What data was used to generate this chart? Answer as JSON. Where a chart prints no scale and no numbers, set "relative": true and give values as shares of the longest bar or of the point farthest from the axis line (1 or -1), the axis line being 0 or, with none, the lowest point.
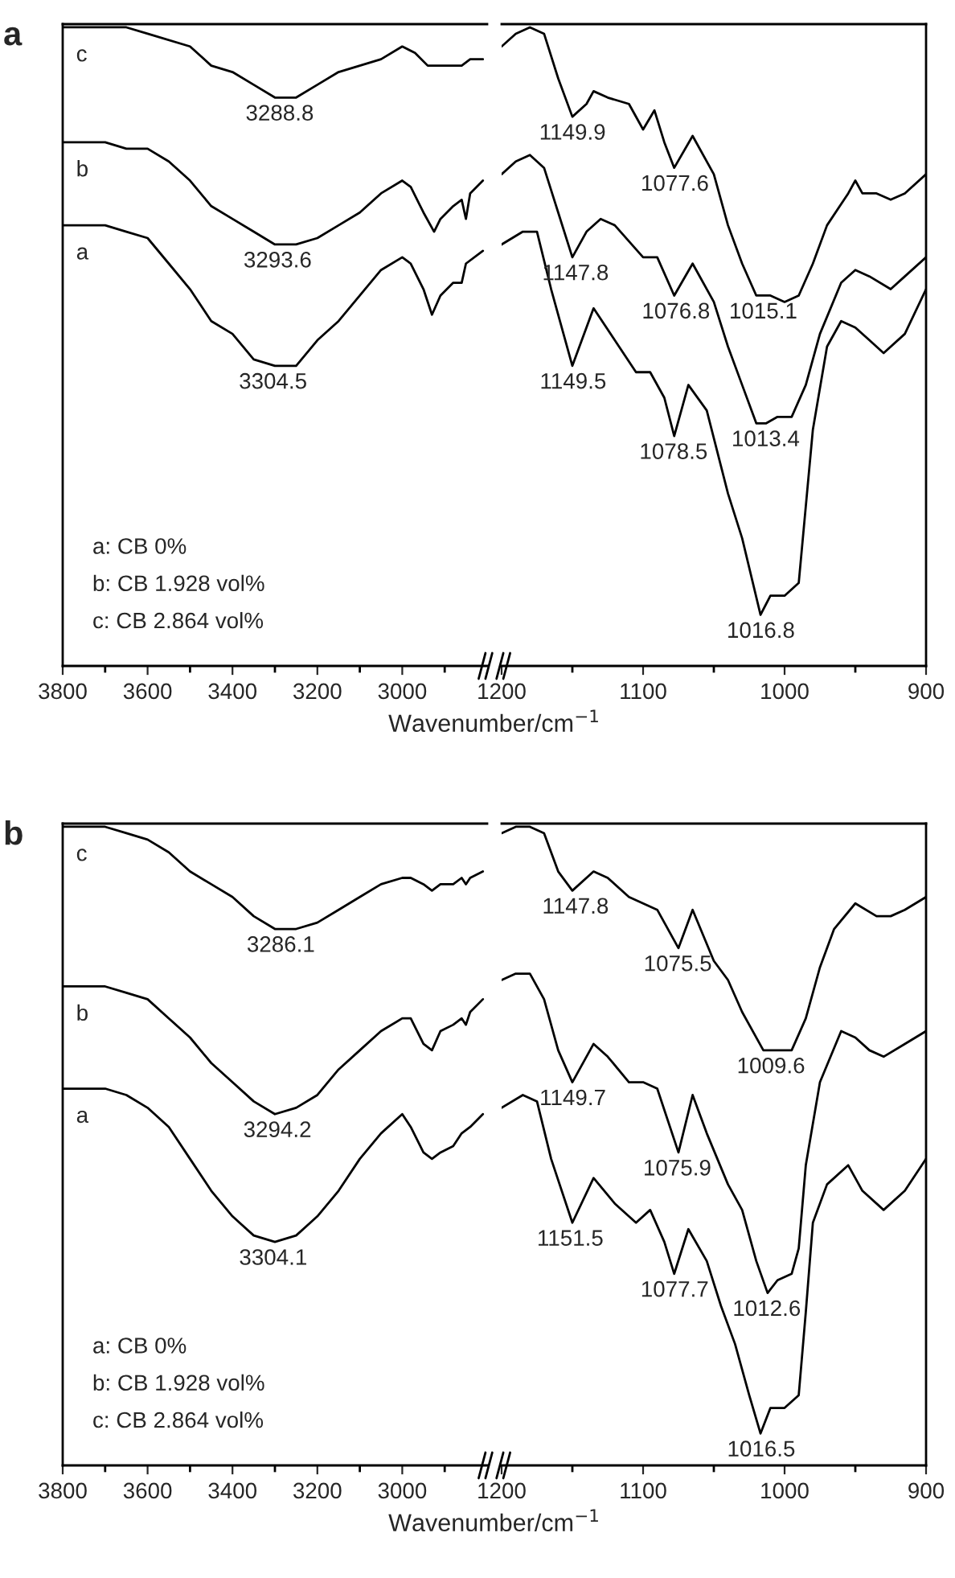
{
  "chart_data": [
    {
      "type": "line",
      "title": "a",
      "relative": true,
      "xlim": [
        3800,
        2800
      ],
      "xticks": [
        3800,
        {
          "value": 3700,
          "label": null
        },
        3600,
        {
          "value": 3500,
          "label": null
        },
        3400,
        {
          "value": 3300,
          "label": null
        },
        3200,
        {
          "value": 3100,
          "label": null
        },
        3000,
        {
          "value": 2900,
          "label": null
        }
      ],
      "xlabel": "Wavenumber/cm$^{−1}$",
      "tick_labels": "x",
      "annotations": [
        "a: CB 0%",
        "b: CB 1.928 vol%",
        "c: CB 2.864 vol%",
        {
          "text": "3288.8",
          "x": 3288.8,
          "y": 0.89
        },
        {
          "text": "3293.6",
          "x": 3293.6,
          "y": 0.66
        },
        {
          "text": "3304.5",
          "x": 3304.5,
          "y": 0.47
        }
      ],
      "series": [
        {
          "name": "c",
          "color": "#000000",
          "x": [
            3800,
            3750,
            3700,
            3650,
            3600,
            3500,
            3450,
            3400,
            3350,
            3300,
            3250,
            3200,
            3150,
            3100,
            3050,
            3000,
            2970,
            2940,
            2920,
            2880,
            2860,
            2840,
            2810
          ],
          "values": [
            1.0,
            1.0,
            1.0,
            1.0,
            0.99,
            0.97,
            0.94,
            0.93,
            0.91,
            0.89,
            0.89,
            0.91,
            0.93,
            0.94,
            0.95,
            0.97,
            0.96,
            0.94,
            0.94,
            0.94,
            0.94,
            0.95,
            0.95
          ]
        },
        {
          "name": "b",
          "color": "#000000",
          "x": [
            3800,
            3700,
            3650,
            3600,
            3550,
            3500,
            3450,
            3400,
            3350,
            3300,
            3250,
            3200,
            3150,
            3100,
            3050,
            3000,
            2980,
            2950,
            2925,
            2910,
            2880,
            2860,
            2850,
            2840,
            2810
          ],
          "values": [
            0.82,
            0.82,
            0.81,
            0.81,
            0.79,
            0.76,
            0.72,
            0.7,
            0.68,
            0.66,
            0.66,
            0.67,
            0.69,
            0.71,
            0.74,
            0.76,
            0.75,
            0.71,
            0.68,
            0.7,
            0.72,
            0.73,
            0.7,
            0.74,
            0.76
          ]
        },
        {
          "name": "a",
          "color": "#000000",
          "x": [
            3800,
            3700,
            3650,
            3600,
            3550,
            3500,
            3450,
            3400,
            3350,
            3300,
            3250,
            3200,
            3150,
            3100,
            3050,
            3000,
            2980,
            2950,
            2930,
            2910,
            2880,
            2860,
            2850,
            2810
          ],
          "values": [
            0.69,
            0.69,
            0.68,
            0.67,
            0.63,
            0.59,
            0.54,
            0.52,
            0.48,
            0.47,
            0.47,
            0.51,
            0.54,
            0.58,
            0.62,
            0.64,
            0.63,
            0.59,
            0.55,
            0.58,
            0.6,
            0.6,
            0.63,
            0.65
          ]
        }
      ]
    },
    {
      "type": "line",
      "relative": true,
      "xlim": [
        1200,
        900
      ],
      "xticks": [
        1200,
        {
          "value": 1150,
          "label": null
        },
        1100,
        {
          "value": 1050,
          "label": null
        },
        1000,
        {
          "value": 950,
          "label": null
        },
        900
      ],
      "tick_labels": "x",
      "annotations": [
        {
          "text": "1149.9",
          "x": 1149.9,
          "y": 0.86
        },
        {
          "text": "1077.6",
          "x": 1077.6,
          "y": 0.78
        },
        {
          "text": "1015.1",
          "x": 1015.1,
          "y": 0.58
        },
        {
          "text": "1147.8",
          "x": 1147.8,
          "y": 0.64
        },
        {
          "text": "1076.8",
          "x": 1076.8,
          "y": 0.58
        },
        {
          "text": "1013.4",
          "x": 1013.4,
          "y": 0.38
        },
        {
          "text": "1149.5",
          "x": 1149.5,
          "y": 0.47
        },
        {
          "text": "1078.5",
          "x": 1078.5,
          "y": 0.36
        },
        {
          "text": "1016.8",
          "x": 1016.8,
          "y": 0.08
        }
      ],
      "series": [
        {
          "color": "#000000",
          "x": [
            1200,
            1190,
            1180,
            1170,
            1160,
            1150,
            1140,
            1135,
            1125,
            1110,
            1100,
            1092,
            1085,
            1078,
            1065,
            1050,
            1040,
            1030,
            1020,
            1010,
            1000,
            990,
            980,
            970,
            955,
            950,
            945,
            935,
            925,
            915,
            900
          ],
          "values": [
            0.97,
            0.99,
            1.0,
            0.99,
            0.92,
            0.86,
            0.88,
            0.9,
            0.89,
            0.88,
            0.84,
            0.87,
            0.82,
            0.78,
            0.83,
            0.77,
            0.69,
            0.63,
            0.58,
            0.58,
            0.57,
            0.58,
            0.63,
            0.69,
            0.74,
            0.76,
            0.74,
            0.74,
            0.73,
            0.74,
            0.77
          ]
        },
        {
          "color": "#000000",
          "x": [
            1200,
            1190,
            1180,
            1170,
            1160,
            1150,
            1140,
            1130,
            1120,
            1100,
            1090,
            1078,
            1065,
            1050,
            1040,
            1030,
            1020,
            1013,
            1005,
            995,
            985,
            975,
            960,
            950,
            940,
            925,
            915,
            900
          ],
          "values": [
            0.77,
            0.79,
            0.8,
            0.78,
            0.71,
            0.64,
            0.68,
            0.7,
            0.69,
            0.64,
            0.64,
            0.58,
            0.63,
            0.57,
            0.5,
            0.44,
            0.38,
            0.38,
            0.39,
            0.39,
            0.44,
            0.52,
            0.6,
            0.62,
            0.61,
            0.59,
            0.61,
            0.64
          ]
        },
        {
          "color": "#000000",
          "x": [
            1200,
            1185,
            1175,
            1165,
            1150,
            1135,
            1120,
            1105,
            1095,
            1085,
            1078,
            1068,
            1055,
            1040,
            1030,
            1017,
            1010,
            1000,
            990,
            980,
            970,
            960,
            950,
            940,
            930,
            915,
            900
          ],
          "values": [
            0.66,
            0.68,
            0.68,
            0.59,
            0.47,
            0.56,
            0.51,
            0.46,
            0.46,
            0.42,
            0.36,
            0.44,
            0.4,
            0.27,
            0.2,
            0.08,
            0.11,
            0.11,
            0.13,
            0.37,
            0.5,
            0.54,
            0.53,
            0.51,
            0.49,
            0.52,
            0.59
          ]
        }
      ]
    },
    {
      "type": "line",
      "title": "b",
      "relative": true,
      "xlim": [
        3800,
        2800
      ],
      "xticks": [
        3800,
        {
          "value": 3700,
          "label": null
        },
        3600,
        {
          "value": 3500,
          "label": null
        },
        3400,
        {
          "value": 3300,
          "label": null
        },
        3200,
        {
          "value": 3100,
          "label": null
        },
        3000,
        {
          "value": 2900,
          "label": null
        }
      ],
      "xlabel": "Wavenumber/cm$^{−1}$",
      "tick_labels": "x",
      "annotations": [
        "a: CB 0%",
        "b: CB 1.928 vol%",
        "c: CB 2.864 vol%",
        {
          "text": "3286.1",
          "x": 3286.1,
          "y": 0.84
        },
        {
          "text": "3294.2",
          "x": 3294.2,
          "y": 0.55
        },
        {
          "text": "3304.1",
          "x": 3304.1,
          "y": 0.35
        }
      ],
      "series": [
        {
          "name": "c",
          "color": "#000000",
          "x": [
            3800,
            3700,
            3650,
            3600,
            3550,
            3500,
            3450,
            3400,
            3350,
            3300,
            3250,
            3200,
            3150,
            3100,
            3050,
            3000,
            2980,
            2950,
            2930,
            2910,
            2880,
            2860,
            2850,
            2840,
            2810
          ],
          "values": [
            1.0,
            1.0,
            0.99,
            0.98,
            0.96,
            0.93,
            0.91,
            0.89,
            0.86,
            0.84,
            0.84,
            0.85,
            0.87,
            0.89,
            0.91,
            0.92,
            0.92,
            0.91,
            0.9,
            0.91,
            0.91,
            0.92,
            0.91,
            0.92,
            0.93
          ]
        },
        {
          "name": "b",
          "color": "#000000",
          "x": [
            3800,
            3700,
            3650,
            3600,
            3550,
            3500,
            3450,
            3400,
            3350,
            3300,
            3250,
            3200,
            3150,
            3100,
            3050,
            3000,
            2980,
            2950,
            2930,
            2910,
            2880,
            2860,
            2850,
            2840,
            2810
          ],
          "values": [
            0.75,
            0.75,
            0.74,
            0.73,
            0.7,
            0.67,
            0.63,
            0.6,
            0.57,
            0.55,
            0.56,
            0.58,
            0.62,
            0.65,
            0.68,
            0.7,
            0.7,
            0.66,
            0.65,
            0.68,
            0.69,
            0.7,
            0.69,
            0.71,
            0.73
          ]
        },
        {
          "name": "a",
          "color": "#000000",
          "x": [
            3800,
            3700,
            3650,
            3600,
            3550,
            3500,
            3450,
            3400,
            3350,
            3300,
            3250,
            3200,
            3150,
            3100,
            3050,
            3000,
            2980,
            2950,
            2930,
            2910,
            2880,
            2860,
            2840,
            2810
          ],
          "values": [
            0.59,
            0.59,
            0.58,
            0.56,
            0.53,
            0.48,
            0.43,
            0.39,
            0.36,
            0.35,
            0.36,
            0.39,
            0.43,
            0.48,
            0.52,
            0.55,
            0.53,
            0.49,
            0.48,
            0.49,
            0.5,
            0.52,
            0.53,
            0.55
          ]
        }
      ]
    },
    {
      "type": "line",
      "relative": true,
      "xlim": [
        1200,
        900
      ],
      "xticks": [
        1200,
        {
          "value": 1150,
          "label": null
        },
        1100,
        {
          "value": 1050,
          "label": null
        },
        1000,
        {
          "value": 950,
          "label": null
        },
        900
      ],
      "tick_labels": "x",
      "annotations": [
        {
          "text": "1147.8",
          "x": 1147.8,
          "y": 0.9
        },
        {
          "text": "1075.5",
          "x": 1075.5,
          "y": 0.81
        },
        {
          "text": "1009.6",
          "x": 1009.6,
          "y": 0.65
        },
        {
          "text": "1149.7",
          "x": 1149.7,
          "y": 0.6
        },
        {
          "text": "1075.9",
          "x": 1075.9,
          "y": 0.49
        },
        {
          "text": "1012.6",
          "x": 1012.6,
          "y": 0.27
        },
        {
          "text": "1151.5",
          "x": 1151.5,
          "y": 0.38
        },
        {
          "text": "1077.7",
          "x": 1077.7,
          "y": 0.3
        },
        {
          "text": "1016.5",
          "x": 1016.5,
          "y": 0.05
        }
      ],
      "series": [
        {
          "color": "#000000",
          "x": [
            1200,
            1190,
            1180,
            1170,
            1160,
            1150,
            1135,
            1125,
            1110,
            1100,
            1090,
            1075,
            1065,
            1050,
            1040,
            1030,
            1015,
            1005,
            995,
            985,
            975,
            965,
            950,
            935,
            925,
            915,
            900
          ],
          "values": [
            0.99,
            1.0,
            1.0,
            0.99,
            0.93,
            0.9,
            0.93,
            0.92,
            0.89,
            0.88,
            0.87,
            0.81,
            0.87,
            0.79,
            0.76,
            0.71,
            0.65,
            0.65,
            0.65,
            0.7,
            0.78,
            0.84,
            0.88,
            0.86,
            0.86,
            0.87,
            0.89
          ]
        },
        {
          "color": "#000000",
          "x": [
            1200,
            1190,
            1180,
            1170,
            1160,
            1150,
            1135,
            1125,
            1110,
            1100,
            1090,
            1075,
            1065,
            1055,
            1040,
            1030,
            1020,
            1012,
            1005,
            995,
            990,
            985,
            975,
            960,
            950,
            940,
            930,
            915,
            900
          ],
          "values": [
            0.76,
            0.77,
            0.77,
            0.73,
            0.65,
            0.6,
            0.66,
            0.64,
            0.6,
            0.6,
            0.59,
            0.49,
            0.58,
            0.52,
            0.44,
            0.4,
            0.32,
            0.27,
            0.29,
            0.3,
            0.34,
            0.47,
            0.6,
            0.68,
            0.67,
            0.65,
            0.64,
            0.66,
            0.68
          ]
        },
        {
          "color": "#000000",
          "x": [
            1200,
            1185,
            1175,
            1165,
            1150,
            1135,
            1120,
            1105,
            1095,
            1085,
            1078,
            1068,
            1055,
            1045,
            1035,
            1025,
            1017,
            1010,
            1000,
            990,
            985,
            980,
            970,
            955,
            945,
            930,
            915,
            900
          ],
          "values": [
            0.56,
            0.58,
            0.57,
            0.48,
            0.38,
            0.45,
            0.41,
            0.38,
            0.4,
            0.35,
            0.3,
            0.37,
            0.32,
            0.25,
            0.19,
            0.11,
            0.05,
            0.09,
            0.09,
            0.11,
            0.24,
            0.38,
            0.44,
            0.47,
            0.43,
            0.4,
            0.43,
            0.48
          ]
        }
      ]
    }
  ]
}
